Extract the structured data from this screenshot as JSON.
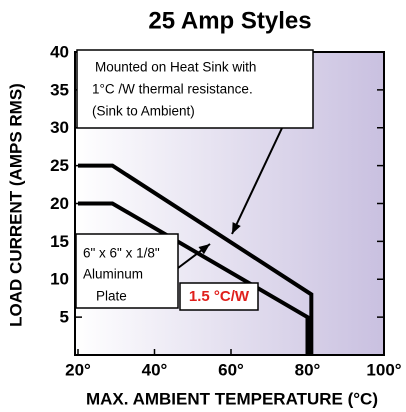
{
  "chart_data": {
    "type": "line",
    "title": "25 Amp Styles",
    "xlabel": "MAX. AMBIENT TEMPERATURE (°C)",
    "ylabel": "LOAD CURRENT (AMPS RMS)",
    "xlim": [
      20,
      100
    ],
    "xticks": [
      {
        "value": 20,
        "label": "20°"
      },
      {
        "value": 40,
        "label": "40°"
      },
      {
        "value": 60,
        "label": "60°"
      },
      {
        "value": 80,
        "label": "80°"
      },
      {
        "value": 100,
        "label": "100°"
      }
    ],
    "ylim": [
      0,
      40
    ],
    "yticks": [
      5,
      10,
      15,
      20,
      25,
      30,
      35,
      40
    ],
    "series": [
      {
        "color": "#000000",
        "x": [
          20,
          29,
          81,
          81
        ],
        "values": [
          25,
          25,
          8,
          0
        ]
      },
      {
        "color": "#000000",
        "x": [
          20,
          29,
          80,
          80
        ],
        "values": [
          20,
          20,
          5,
          0
        ]
      }
    ],
    "annotations": [
      {
        "lines": [
          "Mounted on  Heat Sink with",
          "1°C /W thermal resistance.",
          "(Sink to  Ambient)"
        ]
      },
      {
        "lines": [
          "6\" x 6\" x 1/8\"",
          "Aluminum",
          "Plate"
        ]
      },
      {
        "text": "1.5 °C/W",
        "color": "#e0201c"
      }
    ]
  }
}
